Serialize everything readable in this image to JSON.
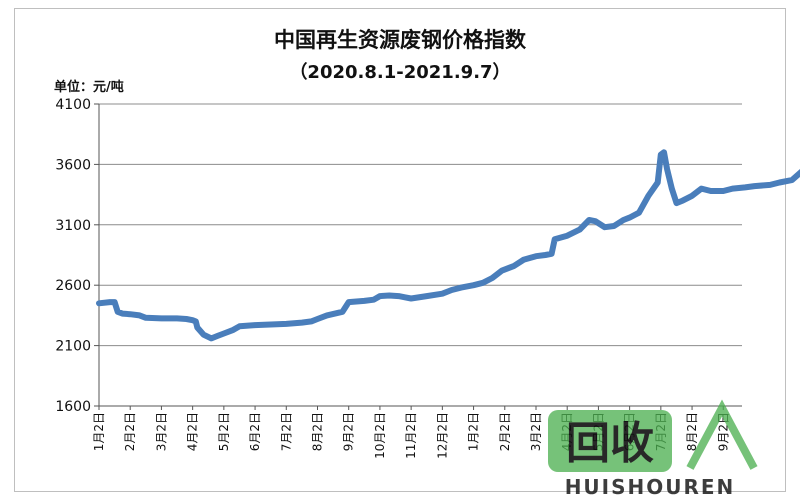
{
  "chart_data": {
    "type": "line",
    "title": "中国再生资源废钢价格指数",
    "subtitle": "（2020.8.1-2021.9.7）",
    "unit_label": "单位：元/吨",
    "ylim": [
      1600,
      4100
    ],
    "yticks": [
      1600,
      2100,
      2600,
      3100,
      3600,
      4100
    ],
    "x_tick_labels": [
      "1月2日",
      "2月2日",
      "3月2日",
      "4月2日",
      "5月2日",
      "6月2日",
      "7月2日",
      "8月2日",
      "9月2日",
      "10月2日",
      "11月2日",
      "12月2日",
      "1月2日",
      "2月2日",
      "3月2日",
      "4月2日",
      "5月2日",
      "6月2日",
      "7月2日",
      "8月2日",
      "9月2日"
    ],
    "grid": "horizontal",
    "series": [
      {
        "color": "#4a7ebb",
        "points": [
          [
            0,
            2450
          ],
          [
            0.35,
            2460
          ],
          [
            0.5,
            2460
          ],
          [
            0.6,
            2380
          ],
          [
            0.75,
            2365
          ],
          [
            1.0,
            2360
          ],
          [
            1.3,
            2350
          ],
          [
            1.5,
            2330
          ],
          [
            2.0,
            2325
          ],
          [
            2.5,
            2325
          ],
          [
            2.8,
            2320
          ],
          [
            3.0,
            2310
          ],
          [
            3.1,
            2300
          ],
          [
            3.15,
            2250
          ],
          [
            3.35,
            2190
          ],
          [
            3.6,
            2160
          ],
          [
            3.8,
            2180
          ],
          [
            4.0,
            2200
          ],
          [
            4.3,
            2230
          ],
          [
            4.5,
            2260
          ],
          [
            5.0,
            2270
          ],
          [
            5.5,
            2275
          ],
          [
            6.0,
            2280
          ],
          [
            6.5,
            2290
          ],
          [
            6.8,
            2300
          ],
          [
            7.0,
            2320
          ],
          [
            7.3,
            2350
          ],
          [
            7.8,
            2380
          ],
          [
            8.0,
            2460
          ],
          [
            8.5,
            2470
          ],
          [
            8.8,
            2480
          ],
          [
            9.0,
            2510
          ],
          [
            9.3,
            2515
          ],
          [
            9.6,
            2510
          ],
          [
            9.8,
            2500
          ],
          [
            10.0,
            2490
          ],
          [
            10.5,
            2510
          ],
          [
            11.0,
            2530
          ],
          [
            11.3,
            2560
          ],
          [
            11.6,
            2580
          ],
          [
            12.0,
            2600
          ],
          [
            12.3,
            2620
          ],
          [
            12.6,
            2660
          ],
          [
            12.9,
            2720
          ],
          [
            13.3,
            2760
          ],
          [
            13.6,
            2810
          ],
          [
            14.0,
            2840
          ],
          [
            14.3,
            2850
          ],
          [
            14.5,
            2860
          ],
          [
            14.6,
            2980
          ],
          [
            15.0,
            3010
          ],
          [
            15.4,
            3060
          ],
          [
            15.7,
            3140
          ],
          [
            15.9,
            3130
          ],
          [
            16.2,
            3080
          ],
          [
            16.5,
            3090
          ],
          [
            16.8,
            3140
          ],
          [
            17.0,
            3160
          ],
          [
            17.3,
            3200
          ],
          [
            17.6,
            3340
          ],
          [
            17.9,
            3450
          ],
          [
            18.0,
            3680
          ],
          [
            18.1,
            3700
          ],
          [
            18.2,
            3560
          ],
          [
            18.35,
            3400
          ],
          [
            18.5,
            3280
          ],
          [
            18.7,
            3300
          ],
          [
            19.0,
            3340
          ],
          [
            19.3,
            3400
          ],
          [
            19.6,
            3380
          ],
          [
            20.0,
            3380
          ],
          [
            20.3,
            3400
          ],
          [
            20.7,
            3410
          ],
          [
            21.0,
            3420
          ],
          [
            21.5,
            3430
          ],
          [
            21.8,
            3450
          ],
          [
            22.2,
            3470
          ],
          [
            22.6,
            3560
          ]
        ]
      }
    ]
  },
  "watermark": {
    "cn_text": "回收",
    "en_text": "HUISHOUREN",
    "color": "#4caf50"
  }
}
